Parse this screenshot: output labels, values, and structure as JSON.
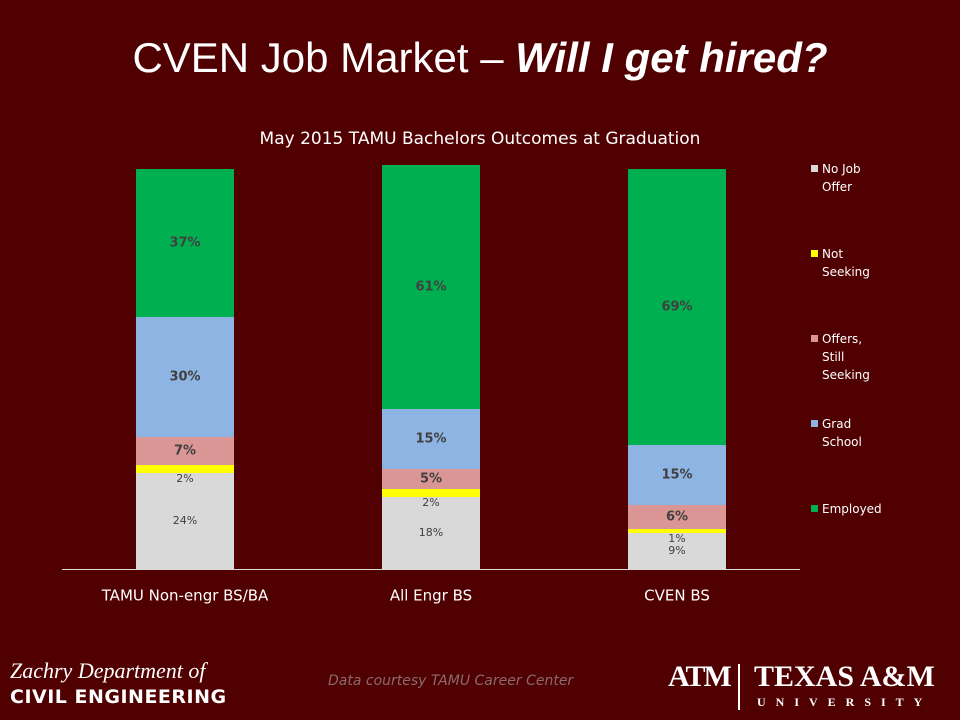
{
  "slide": {
    "title_plain": "CVEN Job Market – ",
    "title_emphasis": "Will I get hired?",
    "department_line1": "Zachry Department of",
    "department_line2": "CIVIL ENGINEERING",
    "credit": "Data courtesy TAMU Career Center",
    "logo_mark": "ATM",
    "university_line1": "TEXAS A&M",
    "university_line2": "UNIVERSITY"
  },
  "chart_data": {
    "type": "stacked_bar",
    "title": "May 2015 TAMU Bachelors Outcomes at Graduation",
    "categories": [
      "TAMU Non-engr BS/BA",
      "All Engr BS",
      "CVEN BS"
    ],
    "ylim": [
      0,
      100
    ],
    "legend": "right",
    "series": [
      {
        "name": "No Job Offer",
        "color": "#d9d9d9",
        "values": [
          24,
          18,
          9
        ],
        "value_labels": [
          "24%",
          "18%",
          "9%"
        ]
      },
      {
        "name": "Not Seeking",
        "color": "#ffff00",
        "values": [
          2,
          2,
          1
        ],
        "value_labels": [
          "2%",
          "2%",
          "1%"
        ]
      },
      {
        "name": "Offers, Still Seeking",
        "color": "#d99694",
        "values": [
          7,
          5,
          6
        ],
        "value_labels": [
          "7%",
          "5%",
          "6%"
        ]
      },
      {
        "name": "Grad School",
        "color": "#8eb4e3",
        "values": [
          30,
          15,
          15
        ],
        "value_labels": [
          "30%",
          "15%",
          "15%"
        ]
      },
      {
        "name": "Employed",
        "color": "#00b050",
        "values": [
          37,
          61,
          69
        ],
        "value_labels": [
          "37%",
          "61%",
          "69%"
        ]
      }
    ]
  }
}
